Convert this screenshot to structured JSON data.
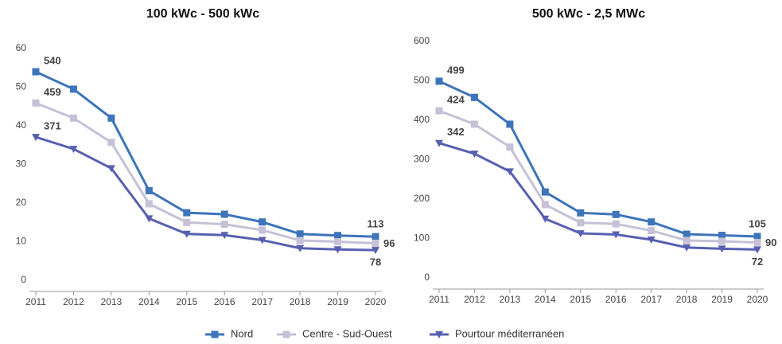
{
  "chart_data": [
    {
      "type": "line",
      "title": "100 kWc - 500 kWc",
      "x": [
        2011,
        2012,
        2013,
        2014,
        2015,
        2016,
        2017,
        2018,
        2019,
        2020
      ],
      "xlim": [
        2011,
        2020
      ],
      "ylim": [
        0,
        60
      ],
      "yticks": [
        0,
        10,
        20,
        30,
        40,
        50,
        60
      ],
      "series": [
        {
          "name": "Nord",
          "color": "#3d74ba",
          "marker": "square",
          "values": [
            54.0,
            49.5,
            42,
            23.2,
            17.5,
            17.1,
            15.1,
            12,
            11.6,
            11.3
          ],
          "value_labels": [
            "540",
            null,
            null,
            null,
            null,
            null,
            null,
            null,
            null,
            "113"
          ]
        },
        {
          "name": "Centre - Sud-Ouest",
          "color": "#c6c1d6",
          "marker": "square",
          "values": [
            45.9,
            42,
            35.7,
            19.8,
            15,
            14.5,
            13,
            10.3,
            10,
            9.6
          ],
          "value_labels": [
            "459",
            null,
            null,
            null,
            null,
            null,
            null,
            null,
            null,
            "96"
          ]
        },
        {
          "name": "Pourtour méditerranéen",
          "color": "#5760b0",
          "marker": "triangle-down",
          "values": [
            37.1,
            34,
            29,
            16,
            12,
            11.7,
            10.4,
            8.3,
            8,
            7.8
          ],
          "value_labels": [
            "371",
            null,
            null,
            null,
            null,
            null,
            null,
            null,
            null,
            "78"
          ]
        }
      ]
    },
    {
      "type": "line",
      "title": "500 kWc - 2,5 MWc",
      "x": [
        2011,
        2012,
        2013,
        2014,
        2015,
        2016,
        2017,
        2018,
        2019,
        2020
      ],
      "xlim": [
        2011,
        2020
      ],
      "ylim": [
        0,
        600
      ],
      "yticks": [
        0,
        100,
        200,
        300,
        400,
        500,
        600
      ],
      "series": [
        {
          "color": "#3d74ba",
          "marker": "square",
          "values": [
            499,
            458,
            390,
            218,
            165,
            161,
            142,
            111,
            108,
            105
          ],
          "value_labels": [
            "499",
            null,
            null,
            null,
            null,
            null,
            null,
            null,
            null,
            "105"
          ]
        },
        {
          "color": "#c6c1d6",
          "marker": "square",
          "values": [
            424,
            390,
            332,
            186,
            140,
            137,
            120,
            95,
            93,
            90
          ],
          "value_labels": [
            "424",
            null,
            null,
            null,
            null,
            null,
            null,
            null,
            null,
            "90"
          ]
        },
        {
          "color": "#5760b0",
          "marker": "triangle-down",
          "values": [
            342,
            315,
            270,
            150,
            113,
            110,
            97,
            77,
            74,
            72
          ],
          "value_labels": [
            "342",
            null,
            null,
            null,
            null,
            null,
            null,
            null,
            null,
            "72"
          ]
        }
      ]
    }
  ]
}
